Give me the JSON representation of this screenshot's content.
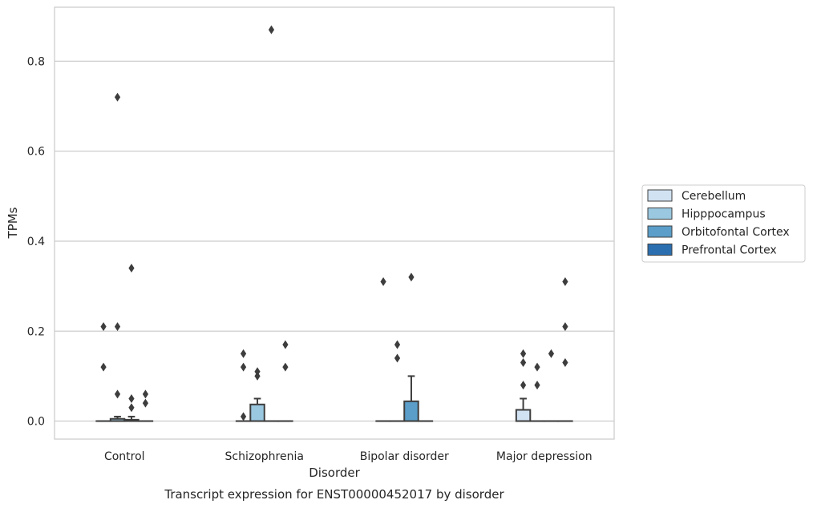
{
  "chart_data": {
    "type": "box",
    "title": "Transcript expression for ENST00000452017 by disorder",
    "xlabel": "Disorder",
    "ylabel": "TPMs",
    "ylim": [
      -0.04,
      0.92
    ],
    "yticks": [
      0.0,
      0.2,
      0.4,
      0.6,
      0.8
    ],
    "ytick_labels": [
      "0.0",
      "0.2",
      "0.4",
      "0.6",
      "0.8"
    ],
    "categories": [
      "Control",
      "Schizophrenia",
      "Bipolar disorder",
      "Major depression"
    ],
    "grid": "horizontal",
    "legend_position": "right",
    "series": [
      {
        "name": "Cerebellum",
        "color": "#d1e2f2",
        "boxes": [
          {
            "q1": 0,
            "median": 0,
            "q3": 0,
            "whislo": 0,
            "whishi": 0,
            "fliers": [
              0.12,
              0.21
            ]
          },
          {
            "q1": 0,
            "median": 0,
            "q3": 0,
            "whislo": 0,
            "whishi": 0,
            "fliers": [
              0.01,
              0.12,
              0.15
            ]
          },
          {
            "q1": 0,
            "median": 0,
            "q3": 0,
            "whislo": 0,
            "whishi": 0,
            "fliers": [
              0.31
            ]
          },
          {
            "q1": 0,
            "median": 0,
            "q3": 0.025,
            "whislo": 0,
            "whishi": 0.05,
            "fliers": [
              0.08,
              0.13,
              0.15
            ]
          }
        ]
      },
      {
        "name": "Hipppocampus",
        "color": "#9ac8e0",
        "boxes": [
          {
            "q1": 0,
            "median": 0,
            "q3": 0.005,
            "whislo": 0,
            "whishi": 0.01,
            "fliers": [
              0.06,
              0.21,
              0.72
            ]
          },
          {
            "q1": 0,
            "median": 0,
            "q3": 0.037,
            "whislo": 0,
            "whishi": 0.05,
            "fliers": [
              0.1,
              0.11
            ]
          },
          {
            "q1": 0,
            "median": 0,
            "q3": 0,
            "whislo": 0,
            "whishi": 0,
            "fliers": [
              0.14,
              0.17
            ]
          },
          {
            "q1": 0,
            "median": 0,
            "q3": 0,
            "whislo": 0,
            "whishi": 0,
            "fliers": [
              0.08,
              0.12
            ]
          }
        ]
      },
      {
        "name": "Orbitofontal Cortex",
        "color": "#5a9ec9",
        "boxes": [
          {
            "q1": 0,
            "median": 0,
            "q3": 0.003,
            "whislo": 0,
            "whishi": 0.01,
            "fliers": [
              0.03,
              0.05,
              0.34
            ]
          },
          {
            "q1": 0,
            "median": 0,
            "q3": 0,
            "whislo": 0,
            "whishi": 0,
            "fliers": [
              0.87
            ]
          },
          {
            "q1": 0,
            "median": 0,
            "q3": 0.044,
            "whislo": 0,
            "whishi": 0.1,
            "fliers": [
              0.32
            ]
          },
          {
            "q1": 0,
            "median": 0,
            "q3": 0,
            "whislo": 0,
            "whishi": 0,
            "fliers": [
              0.15
            ]
          }
        ]
      },
      {
        "name": "Prefrontal Cortex",
        "color": "#2b6fb0",
        "boxes": [
          {
            "q1": 0,
            "median": 0,
            "q3": 0,
            "whislo": 0,
            "whishi": 0,
            "fliers": [
              0.04,
              0.06
            ]
          },
          {
            "q1": 0,
            "median": 0,
            "q3": 0,
            "whislo": 0,
            "whishi": 0,
            "fliers": [
              0.12,
              0.17
            ]
          },
          {
            "q1": 0,
            "median": 0,
            "q3": 0,
            "whislo": 0,
            "whishi": 0,
            "fliers": []
          },
          {
            "q1": 0,
            "median": 0,
            "q3": 0,
            "whislo": 0,
            "whishi": 0,
            "fliers": [
              0.13,
              0.21,
              0.31
            ]
          }
        ]
      }
    ]
  }
}
